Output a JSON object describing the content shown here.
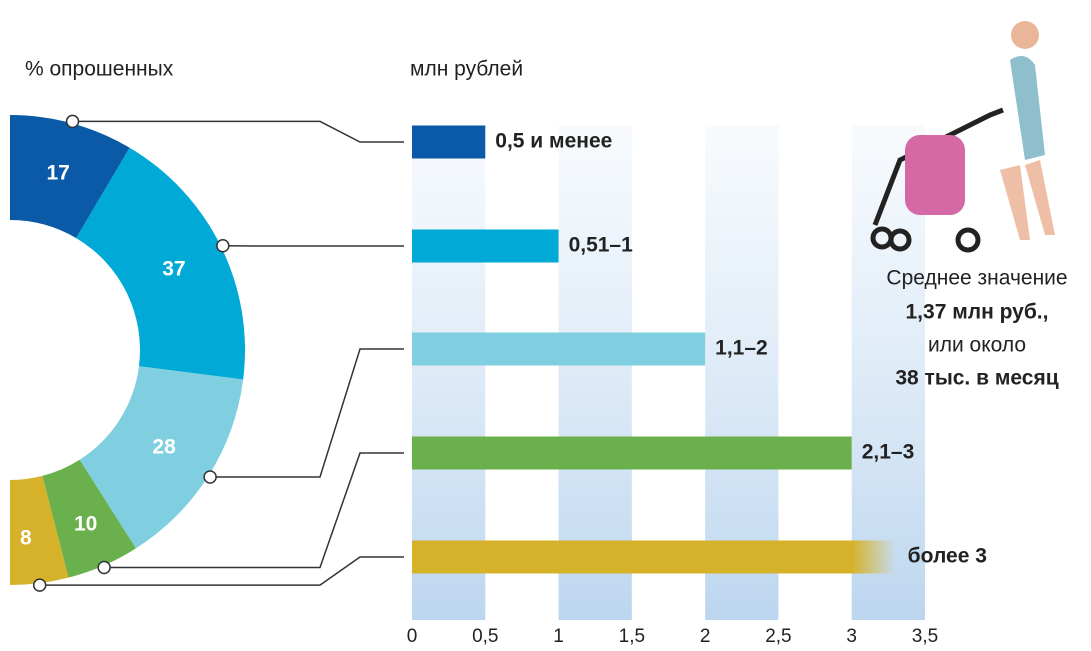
{
  "chart_data": [
    {
      "type": "pie",
      "title": "% опрошенных",
      "values": [
        17,
        37,
        28,
        10,
        8
      ],
      "colors": [
        "#0b5aa8",
        "#00a9d6",
        "#7fcfe1",
        "#6ab04c",
        "#d6b22a"
      ]
    },
    {
      "type": "bar",
      "orientation": "horizontal",
      "x_label": "млн рублей",
      "categories": [
        "0,5 и менее",
        "0,51–1",
        "1,1–2",
        "2,1–3",
        "более 3"
      ],
      "values": [
        0.5,
        1,
        2,
        3,
        3.3
      ],
      "colors": [
        "#0b5aa8",
        "#00a9d6",
        "#7fcfe1",
        "#6ab04c",
        "#d6b22a"
      ],
      "xlim": [
        0,
        3.5
      ],
      "xticks": [
        0,
        {
          "value": 0.5,
          "label": "0,5"
        },
        1,
        {
          "value": 1.5,
          "label": "1,5"
        },
        2,
        {
          "value": 2.5,
          "label": "2,5"
        },
        3,
        {
          "value": 3.5,
          "label": "3,5"
        }
      ],
      "annotation": [
        "Среднее значение",
        "1,37 млн руб.,",
        "или около",
        "38 тыс. в месяц"
      ]
    }
  ]
}
